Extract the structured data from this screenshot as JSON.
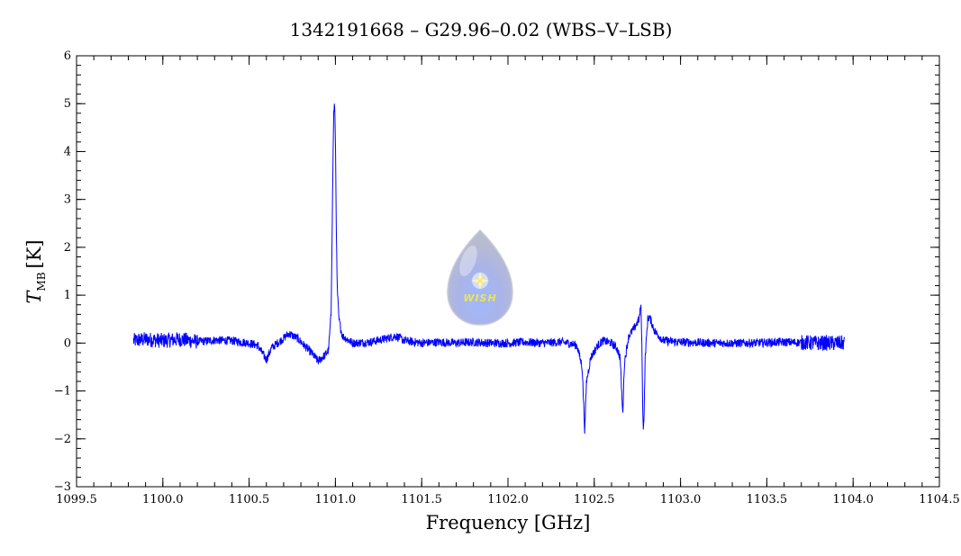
{
  "chart_data": {
    "type": "line",
    "title": "1342191668 – G29.96–0.02 (WBS–V–LSB)",
    "xlabel": "Frequency [GHz]",
    "ylabel_main": "T",
    "ylabel_sub": "MB",
    "ylabel_unit": "[K]",
    "xlim": [
      1099.5,
      1104.5
    ],
    "ylim": [
      -3,
      6
    ],
    "x_ticks": [
      "1099.5",
      "1100.0",
      "1100.5",
      "1101.0",
      "1101.5",
      "1102.0",
      "1102.5",
      "1103.0",
      "1103.5",
      "1104.0",
      "1104.5"
    ],
    "y_ticks": [
      "−3",
      "−2",
      "−1",
      "0",
      "1",
      "2",
      "3",
      "4",
      "5",
      "6"
    ],
    "grid": false,
    "legend": "none",
    "series": [
      {
        "color": "#0000ff",
        "points": [
          [
            1099.83,
            0.05
          ],
          [
            1099.9,
            0.08
          ],
          [
            1100.0,
            0.05
          ],
          [
            1100.1,
            0.08
          ],
          [
            1100.2,
            0.03
          ],
          [
            1100.3,
            0.06
          ],
          [
            1100.4,
            0.05
          ],
          [
            1100.5,
            0.0
          ],
          [
            1100.55,
            -0.05
          ],
          [
            1100.6,
            -0.35
          ],
          [
            1100.63,
            -0.1
          ],
          [
            1100.7,
            0.1
          ],
          [
            1100.73,
            0.2
          ],
          [
            1100.78,
            0.1
          ],
          [
            1100.82,
            -0.05
          ],
          [
            1100.86,
            -0.2
          ],
          [
            1100.9,
            -0.38
          ],
          [
            1100.94,
            -0.25
          ],
          [
            1100.96,
            -0.15
          ],
          [
            1100.975,
            0.6
          ],
          [
            1100.985,
            3.5
          ],
          [
            1100.99,
            4.8
          ],
          [
            1100.995,
            5.0
          ],
          [
            1101.0,
            4.3
          ],
          [
            1101.005,
            2.5
          ],
          [
            1101.01,
            1.2
          ],
          [
            1101.02,
            0.5
          ],
          [
            1101.04,
            0.15
          ],
          [
            1101.1,
            0.0
          ],
          [
            1101.2,
            0.02
          ],
          [
            1101.3,
            0.1
          ],
          [
            1101.35,
            0.15
          ],
          [
            1101.4,
            0.05
          ],
          [
            1101.5,
            0.0
          ],
          [
            1101.6,
            0.02
          ],
          [
            1101.7,
            0.0
          ],
          [
            1101.8,
            0.02
          ],
          [
            1101.9,
            0.0
          ],
          [
            1102.0,
            0.0
          ],
          [
            1102.1,
            0.02
          ],
          [
            1102.2,
            0.0
          ],
          [
            1102.3,
            0.02
          ],
          [
            1102.35,
            0.0
          ],
          [
            1102.4,
            -0.05
          ],
          [
            1102.43,
            -0.5
          ],
          [
            1102.445,
            -1.85
          ],
          [
            1102.455,
            -0.8
          ],
          [
            1102.48,
            -0.3
          ],
          [
            1102.52,
            -0.05
          ],
          [
            1102.55,
            0.05
          ],
          [
            1102.6,
            0.0
          ],
          [
            1102.63,
            -0.1
          ],
          [
            1102.65,
            -0.3
          ],
          [
            1102.665,
            -1.5
          ],
          [
            1102.675,
            -0.4
          ],
          [
            1102.7,
            0.15
          ],
          [
            1102.73,
            0.3
          ],
          [
            1102.76,
            0.5
          ],
          [
            1102.77,
            0.8
          ],
          [
            1102.775,
            0.2
          ],
          [
            1102.78,
            -1.2
          ],
          [
            1102.785,
            -1.85
          ],
          [
            1102.79,
            -1.3
          ],
          [
            1102.795,
            -0.3
          ],
          [
            1102.81,
            0.5
          ],
          [
            1102.82,
            0.55
          ],
          [
            1102.85,
            0.25
          ],
          [
            1102.9,
            0.05
          ],
          [
            1103.0,
            0.02
          ],
          [
            1103.2,
            0.0
          ],
          [
            1103.4,
            0.0
          ],
          [
            1103.6,
            0.02
          ],
          [
            1103.8,
            0.0
          ],
          [
            1103.95,
            0.0
          ]
        ]
      }
    ]
  },
  "logo": {
    "text": "WISH"
  }
}
